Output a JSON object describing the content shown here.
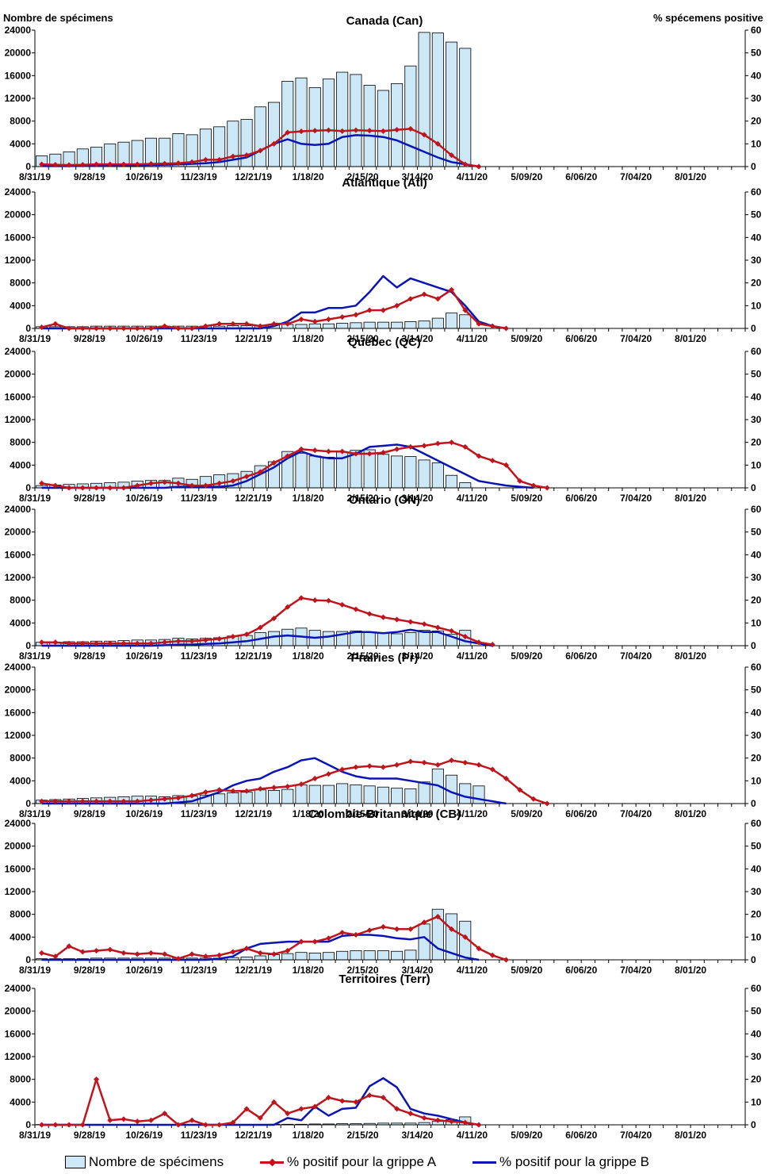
{
  "figure": {
    "left_axis_label": "Nombre de spécimens",
    "right_axis_label": "% spécemens positive"
  },
  "colors": {
    "bar_fill": "#cce8f6",
    "bar_edge": "#000000",
    "flu_a": "#c0141c",
    "flu_b": "#0a14b4"
  },
  "legend": {
    "specimens": "Nombre de spécimens",
    "flu_a": "% positif pour la grippe A",
    "flu_b": "% positif pour la grippe B"
  },
  "chart_data": [
    {
      "type": "bar+line",
      "title": "Canada (Can)",
      "x_tick_labels": [
        "8/31/19",
        "9/28/19",
        "10/26/19",
        "11/23/19",
        "12/21/19",
        "1/18/20",
        "2/15/20",
        "3/14/20",
        "4/11/20",
        "5/09/20",
        "6/06/20",
        "7/04/20",
        "8/01/20"
      ],
      "n_weeks": 52,
      "ylim_left": [
        0,
        24000
      ],
      "yticks_left": [
        0,
        4000,
        8000,
        12000,
        16000,
        20000,
        24000
      ],
      "ylim_right": [
        0,
        60
      ],
      "yticks_right": [
        0,
        10,
        20,
        30,
        40,
        50,
        60
      ],
      "specimens": [
        1900,
        2200,
        2600,
        3100,
        3400,
        4000,
        4300,
        4600,
        5000,
        5000,
        5800,
        5600,
        6600,
        7000,
        8000,
        8300,
        10500,
        11300,
        15000,
        15600,
        13900,
        15400,
        16600,
        16200,
        14300,
        13400,
        14600,
        17700,
        23600,
        23500,
        21900,
        20800
      ],
      "pct_flu_a": [
        1,
        0.8,
        0.7,
        0.8,
        1,
        1,
        1,
        1,
        1.2,
        1.3,
        1.5,
        2,
        3,
        3,
        4.5,
        5,
        7,
        10,
        15,
        15.5,
        15.8,
        16,
        15.6,
        16,
        15.8,
        15.6,
        16.2,
        16.6,
        14,
        10,
        5,
        1,
        0
      ],
      "pct_flu_b": [
        0.2,
        0.2,
        0.2,
        0.3,
        0.3,
        0.4,
        0.5,
        0.6,
        0.7,
        0.8,
        1,
        1.2,
        1.5,
        2,
        3,
        4,
        7,
        10,
        12,
        10,
        9.5,
        10,
        13,
        13.8,
        13.6,
        13,
        11.5,
        9,
        6.5,
        4,
        2,
        1,
        0
      ]
    },
    {
      "type": "bar+line",
      "title": "Atlantique (Atl)",
      "x_tick_labels": [
        "8/31/19",
        "9/28/19",
        "10/26/19",
        "11/23/19",
        "12/21/19",
        "1/18/20",
        "2/15/20",
        "3/14/20",
        "4/11/20",
        "5/09/20",
        "6/06/20",
        "7/04/20",
        "8/01/20"
      ],
      "n_weeks": 52,
      "ylim_left": [
        0,
        24000
      ],
      "yticks_left": [
        0,
        4000,
        8000,
        12000,
        16000,
        20000,
        24000
      ],
      "ylim_right": [
        0,
        60
      ],
      "yticks_right": [
        0,
        10,
        20,
        30,
        40,
        50,
        60
      ],
      "specimens": [
        300,
        300,
        300,
        300,
        400,
        400,
        400,
        400,
        400,
        400,
        400,
        400,
        400,
        400,
        500,
        500,
        500,
        600,
        700,
        700,
        800,
        800,
        900,
        1000,
        1100,
        1100,
        1100,
        1200,
        1300,
        1800,
        2700,
        2400
      ],
      "pct_flu_a": [
        0.5,
        2,
        0,
        0,
        0,
        0,
        0,
        0,
        0,
        1,
        0,
        0,
        1,
        2,
        2,
        2,
        1,
        2,
        2,
        4,
        3,
        4,
        5,
        6,
        8,
        8,
        10,
        13,
        15,
        13,
        17,
        8,
        2,
        1,
        0
      ],
      "pct_flu_b": [
        0,
        0,
        0,
        0,
        0,
        0,
        0,
        0,
        0,
        0,
        0,
        0,
        0,
        0,
        0,
        0,
        0,
        1,
        3,
        7,
        7,
        9,
        9,
        10,
        16,
        23,
        18,
        22,
        20,
        18,
        16,
        10,
        3,
        1,
        0
      ]
    },
    {
      "type": "bar+line",
      "title": "Québec (QC)",
      "x_tick_labels": [
        "8/31/19",
        "9/28/19",
        "10/26/19",
        "11/23/19",
        "12/21/19",
        "1/18/20",
        "2/15/20",
        "3/14/20",
        "4/11/20",
        "5/09/20",
        "6/06/20",
        "7/04/20",
        "8/01/20"
      ],
      "n_weeks": 52,
      "ylim_left": [
        0,
        24000
      ],
      "yticks_left": [
        0,
        4000,
        8000,
        12000,
        16000,
        20000,
        24000
      ],
      "ylim_right": [
        0,
        60
      ],
      "yticks_right": [
        0,
        10,
        20,
        30,
        40,
        50,
        60
      ],
      "specimens": [
        400,
        500,
        600,
        700,
        800,
        900,
        1000,
        1200,
        1300,
        1300,
        1700,
        1500,
        2000,
        2300,
        2500,
        2900,
        3900,
        4600,
        6400,
        6100,
        5600,
        5400,
        6300,
        6600,
        6700,
        5900,
        5600,
        5500,
        4900,
        4400,
        2200,
        900
      ],
      "pct_flu_a": [
        2,
        1,
        0,
        0,
        0,
        0,
        0,
        1,
        2,
        2.5,
        2,
        1,
        1,
        2,
        3,
        5,
        7,
        11,
        14,
        17,
        16.5,
        16,
        16,
        15,
        15,
        15.5,
        17,
        18,
        18.5,
        19.5,
        20,
        18,
        14,
        12,
        10,
        3,
        1,
        0
      ],
      "pct_flu_b": [
        0,
        0,
        0,
        0,
        0,
        0,
        0,
        0,
        0,
        0,
        0.5,
        0.5,
        0.5,
        0.5,
        1,
        3,
        6,
        9,
        13,
        16,
        14,
        13,
        13,
        15,
        18,
        18.5,
        19,
        18,
        15,
        12,
        9,
        6,
        3,
        2,
        1,
        0.5,
        0
      ]
    },
    {
      "type": "bar+line",
      "title": "Ontario (ON)",
      "x_tick_labels": [
        "8/31/19",
        "9/28/19",
        "10/26/19",
        "11/23/19",
        "12/21/19",
        "1/18/20",
        "2/15/20",
        "3/14/20",
        "4/11/20",
        "5/09/20",
        "6/06/20",
        "7/04/20",
        "8/01/20"
      ],
      "n_weeks": 52,
      "ylim_left": [
        0,
        24000
      ],
      "yticks_left": [
        0,
        4000,
        8000,
        12000,
        16000,
        20000,
        24000
      ],
      "ylim_right": [
        0,
        60
      ],
      "yticks_right": [
        0,
        10,
        20,
        30,
        40,
        50,
        60
      ],
      "specimens": [
        600,
        600,
        700,
        700,
        800,
        800,
        900,
        1000,
        1000,
        1100,
        1300,
        1200,
        1300,
        1400,
        1700,
        1800,
        2300,
        2500,
        2900,
        3100,
        2700,
        2500,
        2500,
        2600,
        2300,
        2200,
        2100,
        2300,
        2700,
        2600,
        2000,
        2700
      ],
      "pct_flu_a": [
        1.5,
        1.5,
        1,
        1,
        1,
        1,
        1,
        1,
        1,
        1.5,
        2,
        2,
        2.5,
        3,
        4,
        5,
        8,
        12,
        17,
        21,
        20,
        19.8,
        18,
        16,
        14,
        12.5,
        11.5,
        10.5,
        9.5,
        8,
        6.5,
        4,
        1.5,
        0.5
      ],
      "pct_flu_b": [
        0,
        0,
        0,
        0,
        0,
        0,
        0,
        0,
        0,
        0.2,
        0.5,
        0.5,
        0.8,
        1,
        1.5,
        2,
        3,
        4,
        4.5,
        4,
        3.5,
        4,
        5,
        6,
        6,
        5.5,
        6,
        7,
        6,
        6,
        4,
        2,
        1,
        0
      ]
    },
    {
      "type": "bar+line",
      "title": "Prairies (Pr)",
      "x_tick_labels": [
        "8/31/19",
        "9/28/19",
        "10/26/19",
        "11/23/19",
        "12/21/19",
        "1/18/20",
        "2/15/20",
        "3/14/20",
        "4/11/20",
        "5/09/20",
        "6/06/20",
        "7/04/20",
        "8/01/20"
      ],
      "n_weeks": 52,
      "ylim_left": [
        0,
        24000
      ],
      "yticks_left": [
        0,
        4000,
        8000,
        12000,
        16000,
        20000,
        24000
      ],
      "ylim_right": [
        0,
        60
      ],
      "yticks_right": [
        0,
        10,
        20,
        30,
        40,
        50,
        60
      ],
      "specimens": [
        600,
        700,
        800,
        900,
        1000,
        1100,
        1200,
        1300,
        1300,
        1200,
        1400,
        1300,
        1500,
        1700,
        1900,
        2000,
        2400,
        2300,
        2500,
        3300,
        3200,
        3200,
        3500,
        3300,
        3100,
        2900,
        2700,
        2600,
        3800,
        6100,
        5000,
        3500,
        3100
      ],
      "pct_flu_a": [
        1,
        1,
        1,
        1,
        1,
        1,
        1,
        1,
        1.5,
        2,
        2.5,
        3.5,
        5,
        6,
        5.5,
        5.5,
        6.5,
        7,
        7.5,
        8.5,
        11,
        13,
        15,
        16,
        16.5,
        16,
        17,
        18.5,
        18,
        17,
        19,
        18,
        17,
        15,
        11,
        6,
        2,
        0
      ],
      "pct_flu_b": [
        0,
        0,
        0,
        0,
        0,
        0,
        0,
        0,
        0,
        0,
        0.5,
        1,
        3,
        5,
        8,
        10,
        11,
        14,
        16,
        19,
        20,
        17,
        14,
        12,
        11,
        11,
        11,
        10,
        9,
        8,
        5,
        3,
        2,
        1,
        0
      ]
    },
    {
      "type": "bar+line",
      "title": "Colombie-Britannique (CB)",
      "x_tick_labels": [
        "8/31/19",
        "9/28/19",
        "10/26/19",
        "11/23/19",
        "12/21/19",
        "1/18/20",
        "2/15/20",
        "3/14/20",
        "4/11/20",
        "5/09/20",
        "6/06/20",
        "7/04/20",
        "8/01/20"
      ],
      "n_weeks": 52,
      "ylim_left": [
        0,
        24000
      ],
      "yticks_left": [
        0,
        4000,
        8000,
        12000,
        16000,
        20000,
        24000
      ],
      "ylim_right": [
        0,
        60
      ],
      "yticks_right": [
        0,
        10,
        20,
        30,
        40,
        50,
        60
      ],
      "specimens": [
        200,
        200,
        200,
        200,
        300,
        300,
        300,
        300,
        300,
        300,
        300,
        300,
        300,
        300,
        400,
        500,
        700,
        900,
        1100,
        1300,
        1200,
        1300,
        1500,
        1600,
        1600,
        1600,
        1500,
        1700,
        6300,
        8900,
        8100,
        6800
      ],
      "pct_flu_a": [
        3,
        1.5,
        6,
        3.5,
        4,
        4.5,
        3,
        2.5,
        3,
        2.5,
        0.5,
        2.5,
        1.5,
        2,
        3.5,
        5,
        3,
        2.5,
        4,
        8,
        8,
        9.5,
        12,
        11,
        13,
        14.5,
        13.5,
        13.5,
        16.5,
        19,
        13.5,
        10,
        5,
        2,
        0
      ],
      "pct_flu_b": [
        0,
        0,
        0,
        0,
        0,
        0,
        0,
        0,
        0,
        0,
        0,
        0,
        0,
        0.5,
        1.5,
        5,
        7,
        7.5,
        8,
        8,
        8,
        8,
        10.5,
        11,
        11,
        10.5,
        9.5,
        9,
        10,
        5,
        3,
        1,
        0
      ]
    },
    {
      "type": "bar+line",
      "title": "Territoires (Terr)",
      "x_tick_labels": [
        "8/31/19",
        "9/28/19",
        "10/26/19",
        "11/23/19",
        "12/21/19",
        "1/18/20",
        "2/15/20",
        "3/14/20",
        "4/11/20",
        "5/09/20",
        "6/06/20",
        "7/04/20",
        "8/01/20"
      ],
      "n_weeks": 52,
      "ylim_left": [
        0,
        24000
      ],
      "yticks_left": [
        0,
        4000,
        8000,
        12000,
        16000,
        20000,
        24000
      ],
      "ylim_right": [
        0,
        60
      ],
      "yticks_right": [
        0,
        10,
        20,
        30,
        40,
        50,
        60
      ],
      "specimens": [
        50,
        50,
        50,
        50,
        50,
        50,
        50,
        50,
        50,
        50,
        50,
        50,
        50,
        50,
        50,
        50,
        50,
        100,
        100,
        100,
        150,
        150,
        200,
        200,
        250,
        300,
        300,
        300,
        400,
        600,
        900,
        1400
      ],
      "pct_flu_a": [
        0,
        0,
        0,
        0,
        20,
        2,
        2.5,
        1.5,
        2,
        5,
        0,
        2,
        0,
        0,
        1,
        7,
        3,
        10,
        5,
        7,
        8,
        12,
        10.5,
        10,
        13,
        12,
        7,
        5,
        3,
        2,
        1.5,
        1,
        0
      ],
      "pct_flu_b": [
        0,
        0,
        0,
        0,
        0,
        0,
        0,
        0,
        0,
        0,
        0,
        0,
        0,
        0,
        0,
        0,
        0,
        0,
        3,
        2,
        8,
        4,
        7,
        7.5,
        17,
        20.5,
        16.5,
        7,
        5,
        4,
        2.5,
        1,
        0
      ]
    }
  ]
}
